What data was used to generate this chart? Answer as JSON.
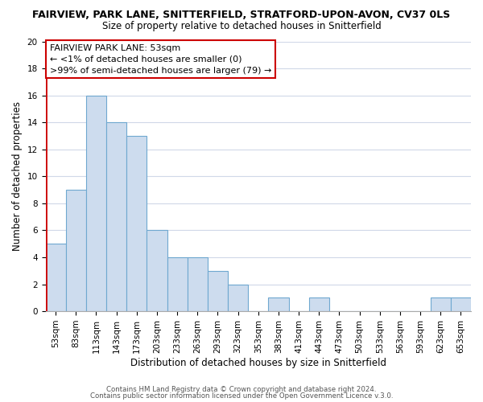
{
  "title": "FAIRVIEW, PARK LANE, SNITTERFIELD, STRATFORD-UPON-AVON, CV37 0LS",
  "subtitle": "Size of property relative to detached houses in Snitterfield",
  "xlabel": "Distribution of detached houses by size in Snitterfield",
  "ylabel": "Number of detached properties",
  "bar_fill_color": "#cddcee",
  "bar_edge_color": "#6fa8d0",
  "categories": [
    "53sqm",
    "83sqm",
    "113sqm",
    "143sqm",
    "173sqm",
    "203sqm",
    "233sqm",
    "263sqm",
    "293sqm",
    "323sqm",
    "353sqm",
    "383sqm",
    "413sqm",
    "443sqm",
    "473sqm",
    "503sqm",
    "533sqm",
    "563sqm",
    "593sqm",
    "623sqm",
    "653sqm"
  ],
  "values": [
    5,
    9,
    16,
    14,
    13,
    6,
    4,
    4,
    3,
    2,
    0,
    1,
    0,
    1,
    0,
    0,
    0,
    0,
    0,
    1,
    1
  ],
  "ylim": [
    0,
    20
  ],
  "yticks": [
    0,
    2,
    4,
    6,
    8,
    10,
    12,
    14,
    16,
    18,
    20
  ],
  "annotation_title": "FAIRVIEW PARK LANE: 53sqm",
  "annotation_line1": "← <1% of detached houses are smaller (0)",
  "annotation_line2": ">99% of semi-detached houses are larger (79) →",
  "annotation_box_color": "white",
  "annotation_box_edge_color": "#cc0000",
  "marker_line_color": "#cc0000",
  "footer1": "Contains HM Land Registry data © Crown copyright and database right 2024.",
  "footer2": "Contains public sector information licensed under the Open Government Licence v.3.0.",
  "background_color": "white",
  "grid_color": "#d0d8e8",
  "title_fontsize": 9.0,
  "subtitle_fontsize": 8.5,
  "axis_label_fontsize": 8.5,
  "tick_fontsize": 7.5,
  "annotation_fontsize": 8.0,
  "footer_fontsize": 6.2
}
